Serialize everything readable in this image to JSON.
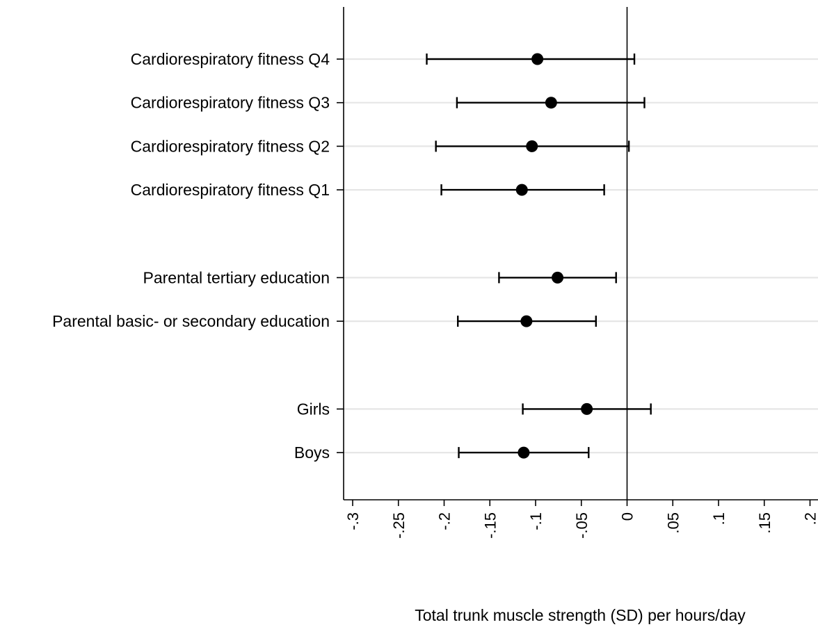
{
  "chart_data": {
    "type": "forest",
    "title": "",
    "xlabel": "Total trunk muscle strength (SD) per hours/day",
    "ylabel": "",
    "xlim": [
      -0.3,
      0.2
    ],
    "x_ticks": [
      -0.3,
      -0.25,
      -0.2,
      -0.15,
      -0.1,
      -0.05,
      0,
      0.05,
      0.1,
      0.15,
      0.2
    ],
    "x_tick_labels": [
      "-.3",
      "-.25",
      "-.2",
      "-.15",
      "-.1",
      "-.05",
      "0",
      ".05",
      ".1",
      ".15",
      ".2"
    ],
    "reference_line": 0,
    "grid": true,
    "legend": "none",
    "groups": [
      {
        "items": [
          {
            "label": "Cardiorespiratory fitness Q4",
            "estimate": -0.098,
            "ci_low": -0.219,
            "ci_high": 0.008
          },
          {
            "label": "Cardiorespiratory fitness Q3",
            "estimate": -0.083,
            "ci_low": -0.186,
            "ci_high": 0.019
          },
          {
            "label": "Cardiorespiratory fitness Q2",
            "estimate": -0.104,
            "ci_low": -0.209,
            "ci_high": 0.002
          },
          {
            "label": "Cardiorespiratory fitness Q1",
            "estimate": -0.115,
            "ci_low": -0.203,
            "ci_high": -0.025
          }
        ]
      },
      {
        "items": [
          {
            "label": "Parental tertiary education",
            "estimate": -0.076,
            "ci_low": -0.14,
            "ci_high": -0.012
          },
          {
            "label": "Parental basic- or secondary education",
            "estimate": -0.11,
            "ci_low": -0.185,
            "ci_high": -0.034
          }
        ]
      },
      {
        "items": [
          {
            "label": "Girls",
            "estimate": -0.044,
            "ci_low": -0.114,
            "ci_high": 0.026
          },
          {
            "label": "Boys",
            "estimate": -0.113,
            "ci_low": -0.184,
            "ci_high": -0.042
          }
        ]
      }
    ],
    "colors": {
      "marker": "#000000",
      "ci_line": "#000000",
      "grid": "#e6e6e6",
      "axis": "#000000"
    }
  }
}
